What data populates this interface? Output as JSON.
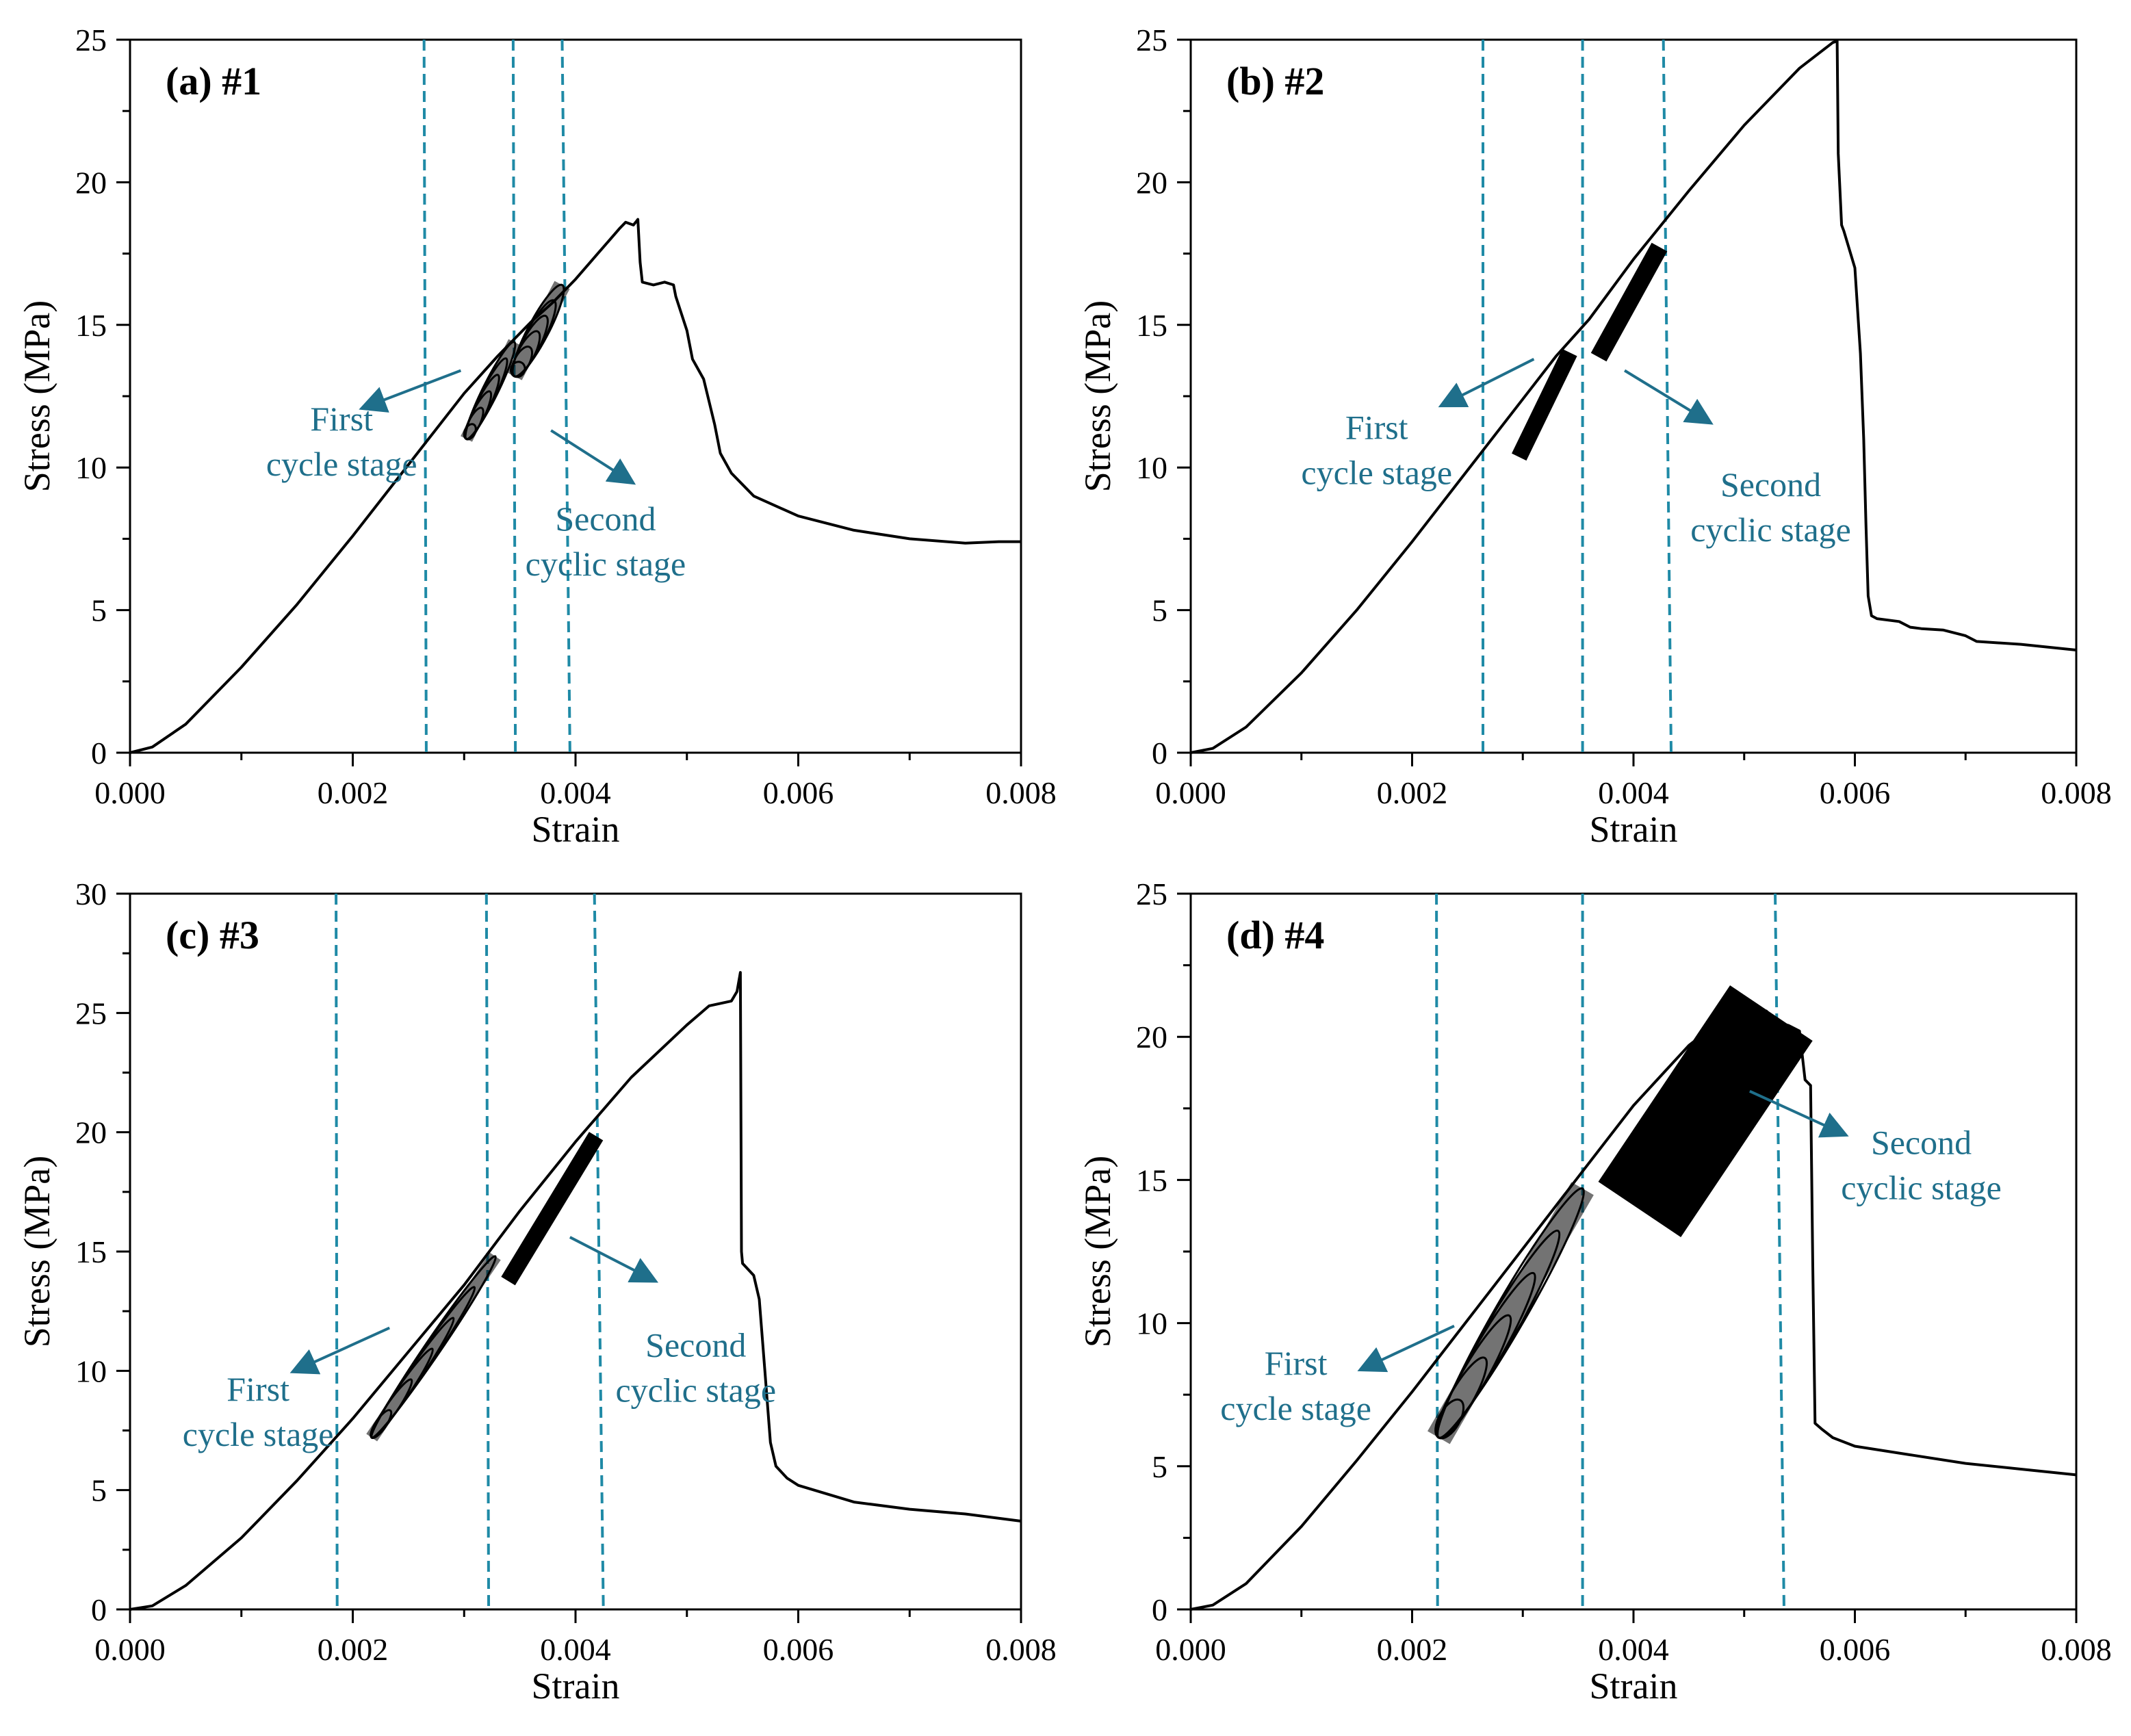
{
  "figure": {
    "description": "Four stress-strain panels"
  },
  "colors": {
    "curve": "#000000",
    "annotation": "#1f6f8b",
    "guide": "#1f8aa6",
    "axis": "#000000"
  },
  "chart_data": [
    {
      "type": "line",
      "panel_label": "(a) #1",
      "xlabel": "Strain",
      "ylabel": "Stress (MPa)",
      "xlim": [
        0,
        0.008
      ],
      "ylim": [
        0,
        25
      ],
      "xticks": [
        0,
        0.002,
        0.004,
        0.006,
        0.008
      ],
      "xtick_labels": [
        "0.000",
        "0.002",
        "0.004",
        "0.006",
        "0.008"
      ],
      "yticks": [
        0,
        5,
        10,
        15,
        20,
        25
      ],
      "ytick_labels": [
        "0",
        "5",
        "10",
        "15",
        "20",
        "25"
      ],
      "guide_lines": [
        [
          0.00264,
          0.00266
        ],
        [
          0.00344,
          0.00346
        ],
        [
          0.00388,
          0.00395
        ]
      ],
      "series": [
        {
          "name": "stress-strain",
          "x": [
            0,
            0.0002,
            0.0005,
            0.001,
            0.0015,
            0.002,
            0.0025,
            0.003,
            0.0033,
            0.0036,
            0.0038,
            0.004,
            0.0042,
            0.0044,
            0.00445,
            0.00452,
            0.00455,
            0.00456,
            0.00458,
            0.0046,
            0.0047,
            0.0048,
            0.00488,
            0.0049,
            0.005,
            0.00505,
            0.00515,
            0.0052,
            0.00525,
            0.0053,
            0.0054,
            0.0055,
            0.0056,
            0.006,
            0.0065,
            0.007,
            0.0075,
            0.0078,
            0.008
          ],
          "y": [
            0,
            0.2,
            1,
            3,
            5.2,
            7.6,
            10.1,
            12.6,
            13.9,
            15.1,
            15.8,
            16.6,
            17.5,
            18.4,
            18.6,
            18.5,
            18.65,
            18.7,
            17.2,
            16.5,
            16.4,
            16.5,
            16.4,
            16,
            14.8,
            13.8,
            13.1,
            12.3,
            11.5,
            10.5,
            9.8,
            9.4,
            9.0,
            8.3,
            7.8,
            7.5,
            7.35,
            7.4,
            7.4
          ]
        }
      ],
      "cycle_blocks": [
        {
          "type": "ellipse_band",
          "x1": 0.00302,
          "y1": 11.0,
          "x2": 0.00345,
          "y2": 14.4,
          "thickness": 0.45
        },
        {
          "type": "ellipse_band",
          "x1": 0.00345,
          "y1": 13.2,
          "x2": 0.00388,
          "y2": 16.4,
          "thickness": 0.6
        }
      ],
      "annotations": [
        {
          "lines": [
            "First",
            "cycle stage"
          ],
          "tx": 0.0019,
          "ty": 11.3,
          "arrow": [
            [
              0.00297,
              13.4
            ],
            [
              0.0021,
              12.1
            ]
          ]
        },
        {
          "lines": [
            "Second",
            "cyclic stage"
          ],
          "tx": 0.00427,
          "ty": 7.8,
          "arrow": [
            [
              0.00378,
              11.3
            ],
            [
              0.0045,
              9.5
            ]
          ]
        }
      ]
    },
    {
      "type": "line",
      "panel_label": "(b) #2",
      "xlabel": "Strain",
      "ylabel": "Stress (MPa)",
      "xlim": [
        0,
        0.008
      ],
      "ylim": [
        0,
        25
      ],
      "xticks": [
        0,
        0.002,
        0.004,
        0.006,
        0.008
      ],
      "xtick_labels": [
        "0.000",
        "0.002",
        "0.004",
        "0.006",
        "0.008"
      ],
      "yticks": [
        0,
        5,
        10,
        15,
        20,
        25
      ],
      "ytick_labels": [
        "0",
        "5",
        "10",
        "15",
        "20",
        "25"
      ],
      "guide_lines": [
        [
          0.00264,
          0.00264
        ],
        [
          0.00354,
          0.00354
        ],
        [
          0.00427,
          0.00434
        ]
      ],
      "series": [
        {
          "name": "stress-strain",
          "x": [
            0,
            0.0002,
            0.0005,
            0.001,
            0.0015,
            0.002,
            0.0025,
            0.003,
            0.0033,
            0.0036,
            0.004,
            0.0045,
            0.005,
            0.0055,
            0.0057,
            0.0058,
            0.00584,
            0.00585,
            0.00588,
            0.0059,
            0.006,
            0.00605,
            0.00608,
            0.0061,
            0.00612,
            0.00615,
            0.0062,
            0.0064,
            0.0065,
            0.0066,
            0.0068,
            0.007,
            0.0071,
            0.0075,
            0.008
          ],
          "y": [
            0,
            0.15,
            0.9,
            2.8,
            5.0,
            7.4,
            9.9,
            12.4,
            13.9,
            15.2,
            17.3,
            19.7,
            22.0,
            24.0,
            24.6,
            24.9,
            24.95,
            21.0,
            18.5,
            18.3,
            17.0,
            14.0,
            11.0,
            8.0,
            5.5,
            4.8,
            4.7,
            4.6,
            4.4,
            4.35,
            4.3,
            4.1,
            3.9,
            3.8,
            3.6
          ]
        }
      ],
      "cycle_blocks": [
        {
          "type": "bar_band",
          "x1": 0.00297,
          "y1": 10.4,
          "x2": 0.00342,
          "y2": 14.0,
          "thickness": 0.5
        },
        {
          "type": "bar_band",
          "x1": 0.00369,
          "y1": 13.9,
          "x2": 0.00423,
          "y2": 17.7,
          "thickness": 0.55
        }
      ],
      "annotations": [
        {
          "lines": [
            "First",
            "cycle stage"
          ],
          "tx": 0.00168,
          "ty": 11.0,
          "arrow": [
            [
              0.0031,
              13.8
            ],
            [
              0.00228,
              12.2
            ]
          ]
        },
        {
          "lines": [
            "Second",
            "cyclic stage"
          ],
          "tx": 0.00524,
          "ty": 9.0,
          "arrow": [
            [
              0.00392,
              13.4
            ],
            [
              0.00468,
              11.6
            ]
          ]
        }
      ]
    },
    {
      "type": "line",
      "panel_label": "(c) #3",
      "xlabel": "Strain",
      "ylabel": "Stress (MPa)",
      "xlim": [
        0,
        0.008
      ],
      "ylim": [
        0,
        30
      ],
      "xticks": [
        0,
        0.002,
        0.004,
        0.006,
        0.008
      ],
      "xtick_labels": [
        "0.000",
        "0.002",
        "0.004",
        "0.006",
        "0.008"
      ],
      "yticks": [
        0,
        5,
        10,
        15,
        20,
        25,
        30
      ],
      "ytick_labels": [
        "0",
        "5",
        "10",
        "15",
        "20",
        "25",
        "30"
      ],
      "guide_lines": [
        [
          0.00185,
          0.00186
        ],
        [
          0.0032,
          0.00322
        ],
        [
          0.00417,
          0.00425
        ]
      ],
      "series": [
        {
          "name": "stress-strain",
          "x": [
            0,
            0.0002,
            0.0005,
            0.001,
            0.0015,
            0.002,
            0.0025,
            0.003,
            0.0035,
            0.004,
            0.0045,
            0.005,
            0.0052,
            0.0053,
            0.0054,
            0.00545,
            0.00548,
            0.00549,
            0.0055,
            0.0056,
            0.00565,
            0.0057,
            0.00575,
            0.0058,
            0.0059,
            0.006,
            0.0065,
            0.007,
            0.0075,
            0.008
          ],
          "y": [
            0,
            0.15,
            1.0,
            3.0,
            5.4,
            8.0,
            10.8,
            13.6,
            16.7,
            19.6,
            22.3,
            24.5,
            25.3,
            25.4,
            25.5,
            25.9,
            26.7,
            15.0,
            14.5,
            14.0,
            13.0,
            10.0,
            7.0,
            6.0,
            5.5,
            5.2,
            4.5,
            4.2,
            4.0,
            3.7
          ]
        }
      ],
      "cycle_blocks": [
        {
          "type": "ellipse_band",
          "x1": 0.00217,
          "y1": 7.2,
          "x2": 0.00328,
          "y2": 14.8,
          "thickness": 0.55
        },
        {
          "type": "bar_band",
          "x1": 0.0034,
          "y1": 13.8,
          "x2": 0.00418,
          "y2": 19.8,
          "thickness": 0.6
        }
      ],
      "annotations": [
        {
          "lines": [
            "First",
            "cycle stage"
          ],
          "tx": 0.00115,
          "ty": 8.75,
          "arrow": [
            [
              0.00233,
              11.8
            ],
            [
              0.00148,
              10.0
            ]
          ]
        },
        {
          "lines": [
            "Second",
            "cyclic stage"
          ],
          "tx": 0.00508,
          "ty": 10.6,
          "arrow": [
            [
              0.00395,
              15.6
            ],
            [
              0.0047,
              13.8
            ]
          ]
        }
      ]
    },
    {
      "type": "line",
      "panel_label": "(d) #4",
      "xlabel": "Strain",
      "ylabel": "Stress (MPa)",
      "xlim": [
        0,
        0.008
      ],
      "ylim": [
        0,
        25
      ],
      "xticks": [
        0,
        0.002,
        0.004,
        0.006,
        0.008
      ],
      "xtick_labels": [
        "0.000",
        "0.002",
        "0.004",
        "0.006",
        "0.008"
      ],
      "yticks": [
        0,
        5,
        10,
        15,
        20,
        25
      ],
      "ytick_labels": [
        "0",
        "5",
        "10",
        "15",
        "20",
        "25"
      ],
      "guide_lines": [
        [
          0.00222,
          0.00223
        ],
        [
          0.00354,
          0.00354
        ],
        [
          0.00528,
          0.00536
        ]
      ],
      "series": [
        {
          "name": "stress-strain",
          "x": [
            0,
            0.0002,
            0.0005,
            0.001,
            0.0015,
            0.002,
            0.0025,
            0.003,
            0.0035,
            0.004,
            0.0045,
            0.0048,
            0.005,
            0.0052,
            0.0053,
            0.0054,
            0.0055,
            0.00555,
            0.0056,
            0.00562,
            0.00564,
            0.0057,
            0.0058,
            0.006,
            0.0065,
            0.007,
            0.0075,
            0.008
          ],
          "y": [
            0,
            0.15,
            0.9,
            2.9,
            5.2,
            7.6,
            10.1,
            12.6,
            15.1,
            17.6,
            19.7,
            20.6,
            20.9,
            20.9,
            20.5,
            20.4,
            20.2,
            18.5,
            18.3,
            12.0,
            6.5,
            6.3,
            6.0,
            5.7,
            5.4,
            5.1,
            4.9,
            4.7
          ]
        }
      ],
      "cycle_blocks": [
        {
          "type": "ellipse_band",
          "x1": 0.00224,
          "y1": 6.0,
          "x2": 0.00354,
          "y2": 14.7,
          "thickness": 0.9
        },
        {
          "type": "bar_band",
          "x1": 0.00406,
          "y1": 14.0,
          "x2": 0.00524,
          "y2": 20.8,
          "thickness": 3.4
        }
      ],
      "annotations": [
        {
          "lines": [
            "First",
            "cycle stage"
          ],
          "tx": 0.00095,
          "ty": 8.2,
          "arrow": [
            [
              0.00238,
              9.9
            ],
            [
              0.00155,
              8.4
            ]
          ]
        },
        {
          "lines": [
            "Second",
            "cyclic stage"
          ],
          "tx": 0.0066,
          "ty": 15.9,
          "arrow": [
            [
              0.00505,
              18.1
            ],
            [
              0.0059,
              16.6
            ]
          ]
        }
      ]
    }
  ]
}
